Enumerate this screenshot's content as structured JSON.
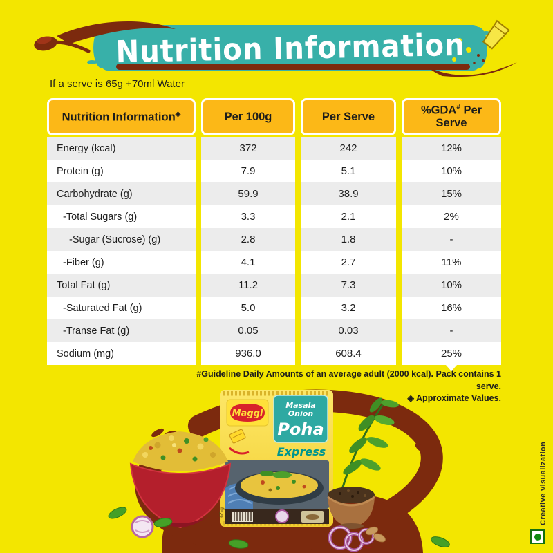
{
  "banner": {
    "title": "Nutrition Information"
  },
  "serve_note": "If a serve is 65g +70ml Water",
  "table": {
    "headers": [
      {
        "text": "Nutrition Information",
        "sup": "◈"
      },
      {
        "text": "Per 100g"
      },
      {
        "text": "Per Serve"
      },
      {
        "text": "%GDA",
        "sup": "#",
        "suffix": " Per Serve"
      }
    ],
    "rows": [
      {
        "label": "Energy (kcal)",
        "indent": 0,
        "per100g": "372",
        "per_serve": "242",
        "gda": "12%"
      },
      {
        "label": "Protein (g)",
        "indent": 0,
        "per100g": "7.9",
        "per_serve": "5.1",
        "gda": "10%"
      },
      {
        "label": "Carbohydrate (g)",
        "indent": 0,
        "per100g": "59.9",
        "per_serve": "38.9",
        "gda": "15%"
      },
      {
        "label": "-Total Sugars (g)",
        "indent": 1,
        "per100g": "3.3",
        "per_serve": "2.1",
        "gda": "2%"
      },
      {
        "label": "-Sugar (Sucrose) (g)",
        "indent": 2,
        "per100g": "2.8",
        "per_serve": "1.8",
        "gda": "-"
      },
      {
        "label": "-Fiber (g)",
        "indent": 1,
        "per100g": "4.1",
        "per_serve": "2.7",
        "gda": "11%"
      },
      {
        "label": "Total Fat (g)",
        "indent": 0,
        "per100g": "11.2",
        "per_serve": "7.3",
        "gda": "10%"
      },
      {
        "label": "-Saturated Fat (g)",
        "indent": 1,
        "per100g": "5.0",
        "per_serve": "3.2",
        "gda": "16%"
      },
      {
        "label": "-Transe Fat (g)",
        "indent": 1,
        "per100g": "0.05",
        "per_serve": "0.03",
        "gda": "-"
      },
      {
        "label": "Sodium (mg)",
        "indent": 0,
        "per100g": "936.0",
        "per_serve": "608.4",
        "gda": "25%"
      }
    ]
  },
  "footnotes": {
    "line1": "#Guideline Daily Amounts of an average adult (2000 kcal). Pack contains 1 serve.",
    "line2": "◈ Approximate Values."
  },
  "product": {
    "brand": "Maggi",
    "variant_line1": "Masala",
    "variant_line2": "Onion",
    "name": "Poha",
    "tag": "Express",
    "weight": "65g"
  },
  "credit": "Creative visualization",
  "colors": {
    "background_yellow": "#f3e600",
    "band_teal": "#38b0a9",
    "brush_maroon": "#7c2a0e",
    "header_amber": "#fcb817",
    "row_gray": "#ececec",
    "maggi_red": "#d8222b",
    "express_teal": "#00958e"
  }
}
